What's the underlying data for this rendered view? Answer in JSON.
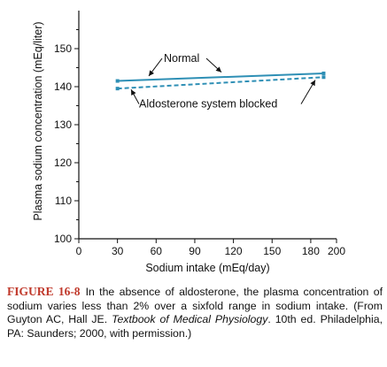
{
  "chart_data": {
    "type": "line",
    "xlabel": "Sodium intake (mEq/day)",
    "ylabel": "Plasma sodium concentration (mEq/liter)",
    "xlim": [
      0,
      200
    ],
    "ylim": [
      100,
      160
    ],
    "xticks": [
      0,
      30,
      60,
      90,
      120,
      150,
      180,
      200
    ],
    "yticks": [
      100,
      110,
      120,
      130,
      140,
      150
    ],
    "grid": false,
    "series": [
      {
        "name": "Normal",
        "style": "solid",
        "x": [
          30,
          190
        ],
        "y": [
          141.5,
          143.5
        ]
      },
      {
        "name": "Aldosterone system blocked",
        "style": "dashed",
        "x": [
          30,
          190
        ],
        "y": [
          139.5,
          142.5
        ]
      }
    ],
    "line_color": "#2e8fb5",
    "axis_color": "#111111"
  },
  "caption": {
    "label": "FIGURE 16-8",
    "text_before": "In the absence of aldosterone, the plasma concentration of sodium varies less than 2% over a sixfold range in sodium intake. (From Guyton AC, Hall JE. ",
    "book_title": "Textbook of Medical Physiology",
    "text_after": ". 10th ed. Philadelphia, PA: Saunders; 2000, with permission.)",
    "label_color": "#c0392b"
  }
}
